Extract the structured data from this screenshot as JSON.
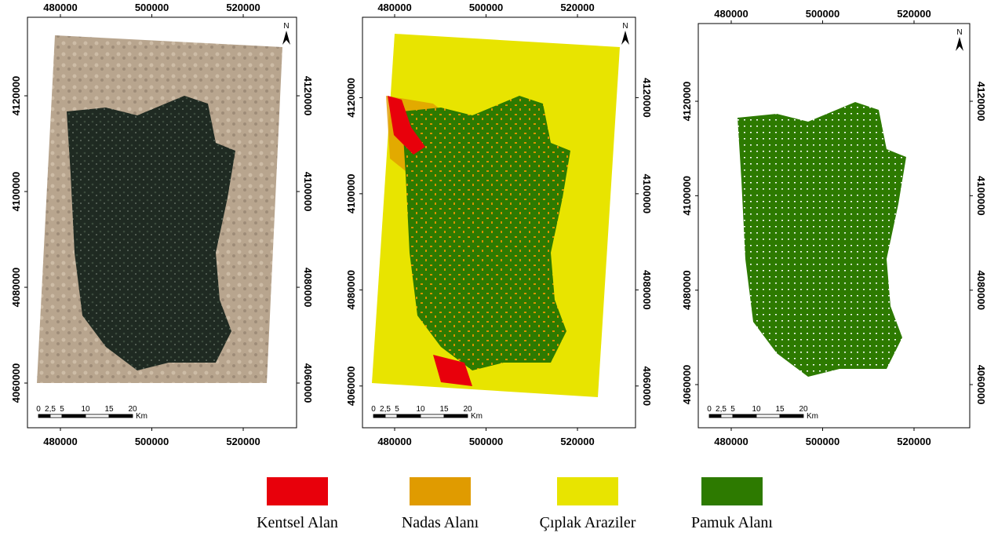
{
  "panels": [
    {
      "x_ticks": [
        480000,
        500000,
        520000
      ],
      "y_ticks": [
        4120000,
        4100000,
        4080000,
        4060000
      ],
      "xlim": [
        472790,
        531670
      ],
      "ylim": [
        4050660,
        4136400
      ],
      "north": "N",
      "scale_labels": [
        "0",
        "2,5",
        "5",
        "10",
        "15",
        "20"
      ],
      "scale_unit": "Km"
    },
    {
      "x_ticks": [
        480000,
        500000,
        520000
      ],
      "y_ticks": [
        4120000,
        4100000,
        4080000,
        4060000
      ],
      "xlim": [
        472960,
        532700
      ],
      "ylim": [
        4051310,
        4136720
      ],
      "north": "N",
      "scale_labels": [
        "0",
        "2,5",
        "5",
        "10",
        "15",
        "20"
      ],
      "scale_unit": "Km"
    },
    {
      "x_ticks": [
        480000,
        500000,
        520000
      ],
      "y_ticks": [
        4120000,
        4100000,
        4080000,
        4060000
      ],
      "xlim": [
        472790,
        532190
      ],
      "ylim": [
        4050860,
        4136460
      ],
      "north": "N",
      "scale_labels": [
        "0",
        "2,5",
        "5",
        "10",
        "15",
        "20"
      ],
      "scale_unit": "Km"
    }
  ],
  "legend": [
    {
      "label": "Kentsel Alan",
      "color": "#e8000b"
    },
    {
      "label": "Nadas Alanı",
      "color": "#e09b00"
    },
    {
      "label": "Çıplak Araziler",
      "color": "#e8e400"
    },
    {
      "label": "Pamuk Alanı",
      "color": "#2d7a00"
    }
  ]
}
